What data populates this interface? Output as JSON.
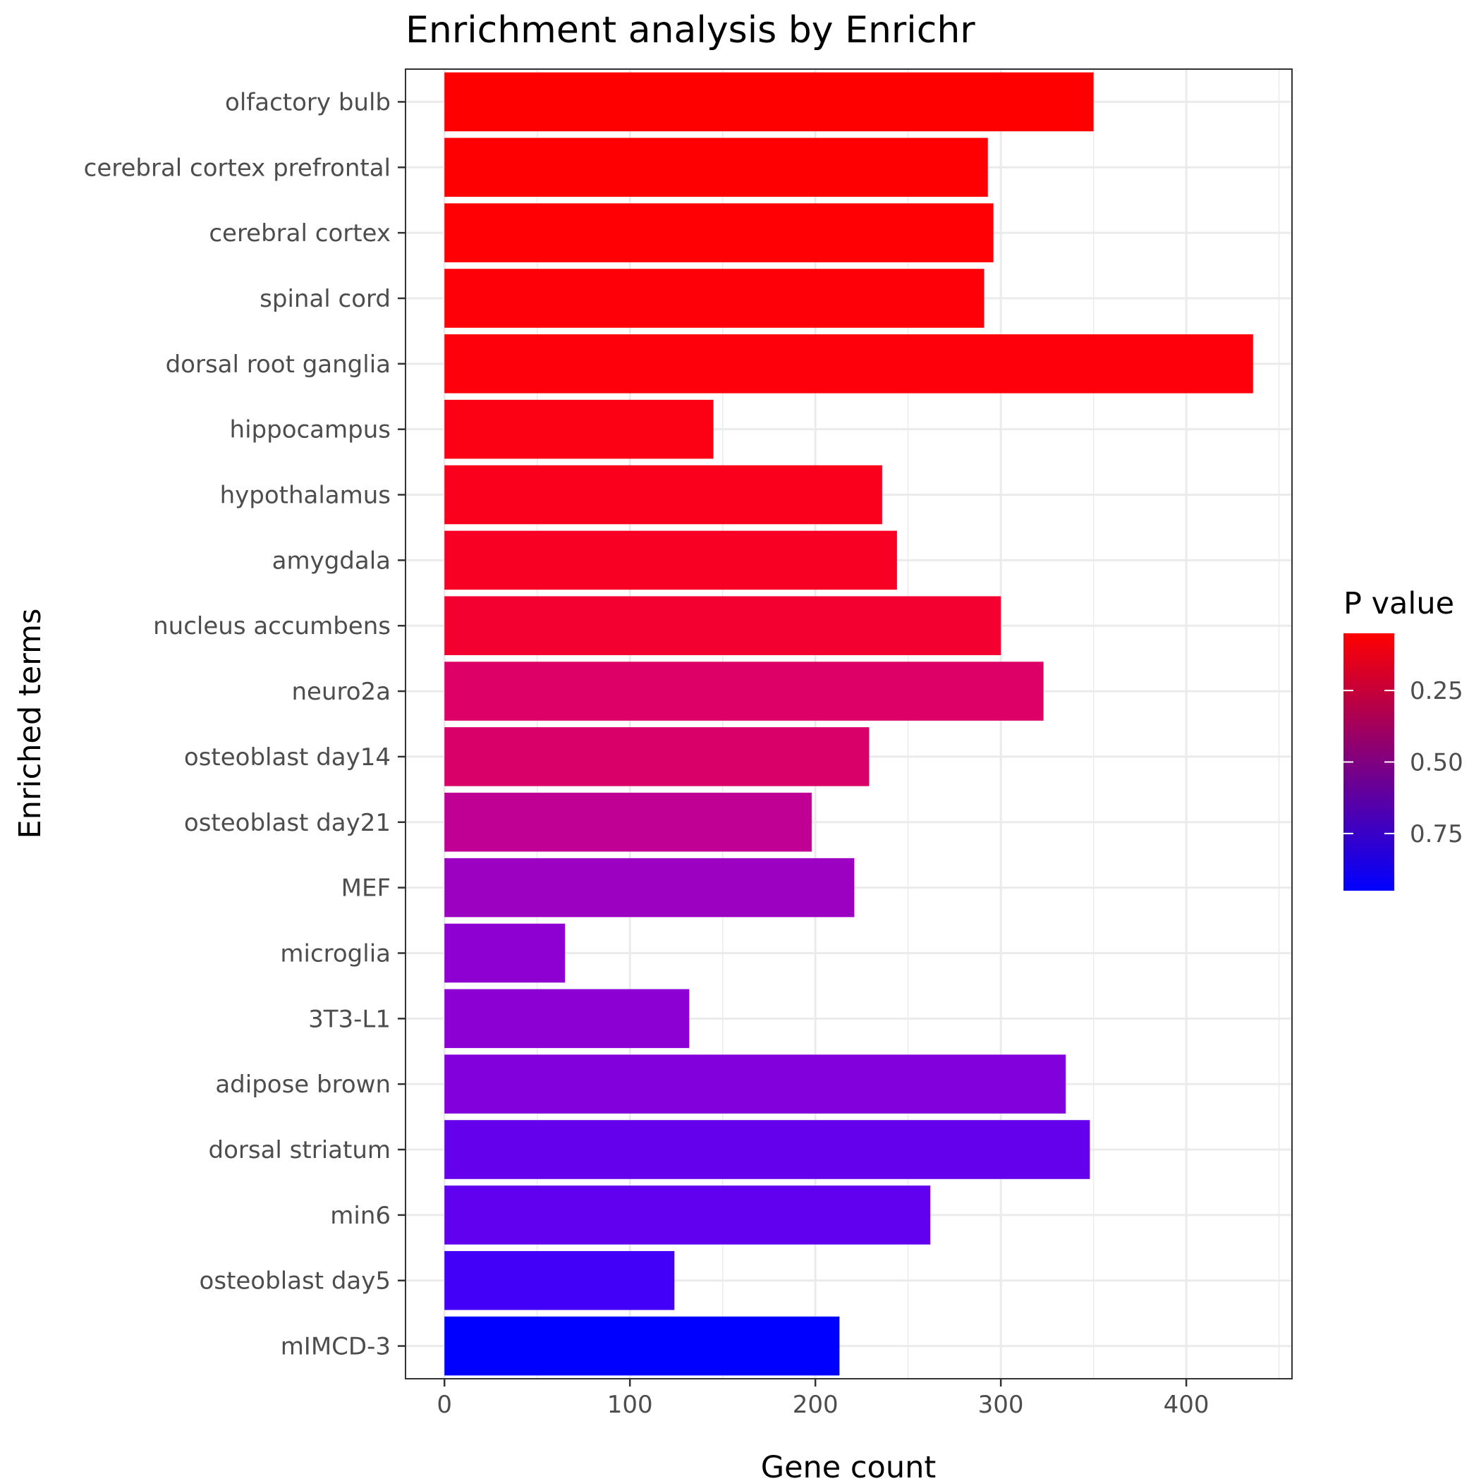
{
  "chart_data": {
    "type": "bar",
    "orientation": "horizontal",
    "title": "Enrichment analysis by Enrichr",
    "xlabel": "Gene count",
    "ylabel": "Enriched terms",
    "xlim": [
      -21,
      457
    ],
    "x_ticks": [
      0,
      100,
      200,
      300,
      400
    ],
    "grid": true,
    "categories": [
      "olfactory bulb",
      "cerebral cortex prefrontal",
      "cerebral cortex",
      "spinal cord",
      "dorsal root ganglia",
      "hippocampus",
      "hypothalamus",
      "amygdala",
      "nucleus accumbens",
      "neuro2a",
      "osteoblast day14",
      "osteoblast day21",
      "MEF",
      "microglia",
      "3T3-L1",
      "adipose brown",
      "dorsal striatum",
      "min6",
      "osteoblast day5",
      "mIMCD-3"
    ],
    "values": [
      350,
      293,
      296,
      291,
      436,
      145,
      236,
      244,
      300,
      323,
      229,
      198,
      221,
      65,
      132,
      335,
      348,
      262,
      124,
      213
    ],
    "bar_colors": [
      "#ff0000",
      "#ff0002",
      "#ff0004",
      "#fe0008",
      "#fe000c",
      "#fc0014",
      "#fa001c",
      "#f80024",
      "#f40030",
      "#dd0066",
      "#da006a",
      "#c00095",
      "#9c00c0",
      "#8e00d2",
      "#8c00d4",
      "#8200dc",
      "#6400ec",
      "#6000ee",
      "#4200f8",
      "#0000ff"
    ],
    "legend": {
      "title": "P value",
      "position": "right",
      "colors": {
        "low_value": "#ff0000",
        "high_value": "#0000ff"
      },
      "range": [
        0.05,
        0.95
      ],
      "ticks": [
        {
          "value": 0.25,
          "label": "0.25"
        },
        {
          "value": 0.5,
          "label": "0.50"
        },
        {
          "value": 0.75,
          "label": "0.75"
        }
      ]
    }
  }
}
